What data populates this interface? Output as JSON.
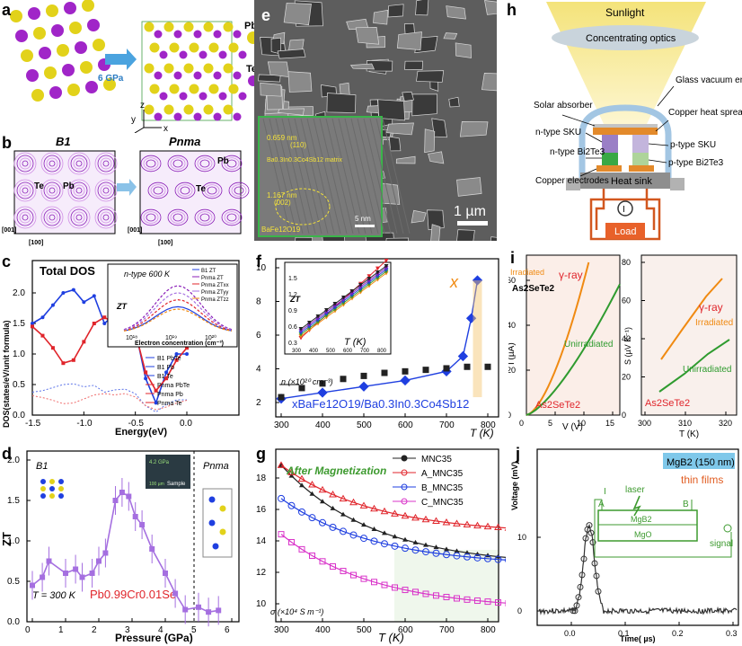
{
  "labels": {
    "a": "a",
    "b": "b",
    "c": "c",
    "d": "d",
    "e": "e",
    "f": "f",
    "g": "g",
    "h": "h",
    "i": "i",
    "j": "j"
  },
  "panel_a": {
    "pressure": "6 GPa",
    "atom1": "Pb",
    "atom2": "Te",
    "axis_z": "z",
    "axis_y": "y",
    "axis_x": "x"
  },
  "panel_b": {
    "title_left": "B1",
    "title_right": "Pnma",
    "label_te": "Te",
    "label_pb": "Pb",
    "label_te2": "Te",
    "label_pb2": "Pb",
    "axis_001": "[001]",
    "axis_100": "[100]",
    "axis_001b": "[001]",
    "axis_100b": "[100]"
  },
  "panel_c": {
    "title": "Total DOS",
    "ylabel": "DOS(states/eV/unit formula)",
    "xlabel": "Energy(eV)",
    "xticks": [
      "-1.5",
      "-1.0",
      "-0.5",
      "0.0"
    ],
    "yticks": [
      "0.0",
      "0.5",
      "1.0",
      "1.5",
      "2.0"
    ],
    "legend": [
      "B1 PbTe",
      "B1 Pb",
      "B1 Te",
      "Pnma PbTe",
      "Pnma Pb",
      "Pnma Te"
    ],
    "inset": {
      "title": "n-type 600 K",
      "ylabel": "ZT",
      "xlabel": "Electron concentration (cm⁻³)",
      "xticks": [
        "10¹⁸",
        "10¹⁹",
        "10²⁰"
      ],
      "legend": [
        "B1 ZT",
        "Pnma ZT",
        "Pnma ZTxx",
        "Pnma ZTyy",
        "Pnma ZTzz"
      ]
    }
  },
  "panel_d": {
    "ylabel": "ZT",
    "xlabel": "Pressure (GPa)",
    "phase1": "B1",
    "phase2": "Pnma",
    "temp": "T = 300 K",
    "formula": "Pb0.99Cr0.01Se",
    "inset_pressure": "4.2 GPa",
    "inset_sample": "Sample",
    "inset_scale": "100 µm",
    "xticks": [
      "0",
      "1",
      "2",
      "3",
      "4",
      "5",
      "6"
    ],
    "yticks": [
      "0.0",
      "0.5",
      "1.0",
      "1.5",
      "2.0"
    ]
  },
  "panel_e": {
    "scale_main": "1 µm",
    "scale_inset": "5 nm",
    "lattice1": "0.659 nm",
    "plane1": "(110)",
    "matrix": "Ba0.3In0.3Co4Sb12 matrix",
    "lattice2": "1.167 nm",
    "plane2": "(002)",
    "particle": "BaFe12O19"
  },
  "panel_f": {
    "ylabel": "ZT",
    "xlabel": "T (K)",
    "series_x": "x",
    "series_n": "n (×10²⁰ cm⁻³)",
    "formula": "xBaFe12O19/Ba0.3In0.3Co4Sb12",
    "xticks": [
      "300",
      "400",
      "500",
      "600",
      "700",
      "800"
    ],
    "yticks": [
      "2",
      "4",
      "6",
      "8",
      "10"
    ],
    "inset": {
      "ylabel": "ZT",
      "xlabel": "T (K)",
      "yticks": [
        "0.3",
        "0.6",
        "0.9",
        "1.2",
        "1.5"
      ],
      "xticks": [
        "300",
        "400",
        "500",
        "600",
        "700",
        "800"
      ]
    }
  },
  "panel_g": {
    "ylabel": "",
    "xlabel": "T (K)",
    "annotation": "After Magnetization",
    "sigma": "σ (×10⁴ S m⁻¹)",
    "legend": [
      "MNC35",
      "A_MNC35",
      "B_MNC35",
      "C_MNC35"
    ],
    "xticks": [
      "300",
      "400",
      "500",
      "600",
      "700",
      "800"
    ],
    "yticks": [
      "10",
      "12",
      "14",
      "16",
      "18"
    ]
  },
  "panel_h": {
    "sunlight": "Sunlight",
    "optics": "Concentrating optics",
    "vacuum": "Glass vacuum enclosure",
    "absorber": "Solar absorber",
    "spreader": "Copper heat spreader",
    "nsku": "n-type SKU",
    "psku": "p-type SKU",
    "nbite": "n-type Bi2Te3",
    "pbite": "p-type Bi2Te3",
    "electrodes": "Copper electrodes",
    "heatsink": "Heat sink",
    "current": "I",
    "load": "Load"
  },
  "panel_i": {
    "left": {
      "ylabel": "I (µA)",
      "xlabel": "V (V)",
      "gamma": "γ-ray",
      "irr": "Irradiated",
      "unirr": "Unirradiated",
      "formula": "As2SeTe2",
      "xticks": [
        "0",
        "5",
        "10",
        "15"
      ],
      "yticks": [
        "0",
        "20",
        "40",
        "60"
      ]
    },
    "right": {
      "ylabel": "S (µV K⁻¹)",
      "xlabel": "T (K)",
      "gamma": "γ-ray",
      "irr": "Irradiated",
      "unirr": "Unirradiated",
      "formula": "As2SeTe2",
      "xticks": [
        "300",
        "310",
        "320"
      ],
      "yticks": [
        "0",
        "20",
        "40",
        "60",
        "80"
      ]
    }
  },
  "panel_j": {
    "ylabel": "Voltage (mV)",
    "xlabel": "Time( µs)",
    "title": "MgB2 (150 nm)",
    "subtitle": "thin films",
    "laser": "laser",
    "current": "I",
    "a": "A",
    "b": "B",
    "layer1": "MgB2",
    "layer2": "MgO",
    "signal": "signal",
    "xticks": [
      "0.0",
      "0.1",
      "0.2",
      "0.3"
    ],
    "yticks": [
      "0",
      "10"
    ]
  },
  "colors": {
    "purple": "#8b3fd9",
    "yellow": "#e2d21a",
    "red": "#e0252b",
    "blue": "#1f3fe0",
    "green": "#2f9b2f",
    "orange": "#f08a12",
    "violet": "#a56fe0"
  }
}
